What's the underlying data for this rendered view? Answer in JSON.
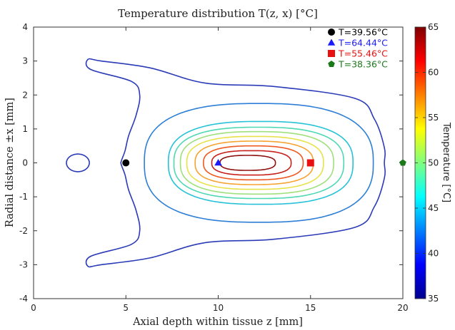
{
  "chart_data": {
    "type": "contour",
    "title": "Temperature distribution T(z, x) [°C]",
    "xlabel": "Axial depth within tissue z [mm]",
    "ylabel": "Radial distance ±x [mm]",
    "xlim": [
      0,
      20
    ],
    "ylim": [
      -4,
      4
    ],
    "xticks": [
      "0",
      "5",
      "10",
      "15",
      "20"
    ],
    "yticks": [
      "4",
      "3",
      "2",
      "1",
      "0",
      "-1",
      "-2",
      "-3",
      "-4"
    ],
    "colorbar": {
      "label": "Temperature [°C]",
      "range": [
        35,
        65
      ],
      "ticks": [
        "65",
        "60",
        "55",
        "50",
        "45",
        "40",
        "35"
      ],
      "colormap": "jet"
    },
    "grid": false,
    "legend_position": "top-right",
    "points": [
      {
        "label": "T=39.56°C",
        "z": 5,
        "x": 0,
        "marker": "circle",
        "color": "#000000"
      },
      {
        "label": "T=64.44°C",
        "z": 10,
        "x": 0,
        "marker": "triangle",
        "color": "#1a1aff"
      },
      {
        "label": "T=55.46°C",
        "z": 15,
        "x": 0,
        "marker": "square",
        "color": "#e81010"
      },
      {
        "label": "T=38.36°C",
        "z": 20,
        "x": 0,
        "marker": "pentagon",
        "color": "#1a7a1a"
      }
    ],
    "contour_levels": [
      {
        "T": 38.0,
        "color": "#2b3bb8",
        "shape": "outer",
        "z_min": 2.7,
        "z_max": 19.0,
        "x_half_max": 3.0
      },
      {
        "T": 38.0,
        "color": "#2b3bb8",
        "shape": "ellipse",
        "center_z": 2.4,
        "half_z": 0.62,
        "half_x": 0.26
      },
      {
        "T": 42.0,
        "color": "#2d7fd6",
        "shape": "rounded",
        "center_z": 12.2,
        "half_z": 6.2,
        "half_x": 1.75
      },
      {
        "T": 45.0,
        "color": "#27c2d8",
        "shape": "rounded",
        "center_z": 12.3,
        "half_z": 5.0,
        "half_x": 1.22
      },
      {
        "T": 47.0,
        "color": "#4fd8b4",
        "shape": "rounded",
        "center_z": 12.2,
        "half_z": 4.6,
        "half_x": 1.05
      },
      {
        "T": 49.0,
        "color": "#9fe07c",
        "shape": "rounded",
        "center_z": 12.1,
        "half_z": 4.15,
        "half_x": 0.92
      },
      {
        "T": 51.5,
        "color": "#e8e24a",
        "shape": "rounded",
        "center_z": 12.0,
        "half_z": 3.7,
        "half_x": 0.78
      },
      {
        "T": 54.0,
        "color": "#f6a331",
        "shape": "rounded",
        "center_z": 11.95,
        "half_z": 3.2,
        "half_x": 0.64
      },
      {
        "T": 57.0,
        "color": "#ee5a22",
        "shape": "rounded",
        "center_z": 11.9,
        "half_z": 2.7,
        "half_x": 0.5
      },
      {
        "T": 59.5,
        "color": "#c7201b",
        "shape": "rounded",
        "center_z": 11.8,
        "half_z": 2.15,
        "half_x": 0.36
      },
      {
        "T": 62.0,
        "color": "#8e1111",
        "shape": "rounded",
        "center_z": 11.6,
        "half_z": 1.5,
        "half_x": 0.22
      }
    ]
  }
}
